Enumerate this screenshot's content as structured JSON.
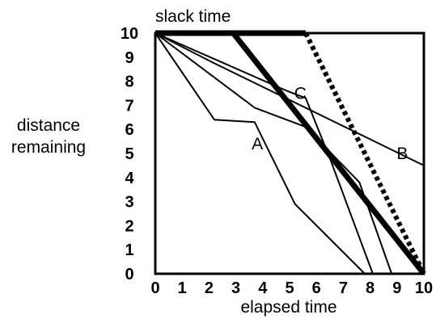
{
  "chart_data": {
    "type": "line",
    "title": "slack time",
    "xlabel": "elapsed time",
    "ylabel": "distance remaining",
    "xlim": [
      0,
      10
    ],
    "ylim": [
      0,
      10
    ],
    "xticks": [
      "0",
      "1",
      "2",
      "3",
      "4",
      "5",
      "6",
      "7",
      "8",
      "9",
      "10"
    ],
    "yticks": [
      "0",
      "1",
      "2",
      "3",
      "4",
      "5",
      "6",
      "7",
      "8",
      "9",
      "10"
    ],
    "grid": false,
    "series": [
      {
        "name": "A",
        "style": "thin",
        "points": [
          [
            0,
            10
          ],
          [
            2.2,
            6.4
          ],
          [
            3.7,
            6.3
          ],
          [
            5.2,
            2.9
          ],
          [
            7.8,
            0
          ]
        ]
      },
      {
        "name": "B",
        "style": "thin",
        "points": [
          [
            0,
            10
          ],
          [
            2.1,
            8.8
          ],
          [
            10,
            4.5
          ]
        ]
      },
      {
        "name": "C",
        "style": "thin",
        "points": [
          [
            0,
            10
          ],
          [
            3.7,
            6.9
          ],
          [
            5.6,
            6.1
          ],
          [
            7.6,
            3.8
          ],
          [
            8.8,
            0
          ]
        ]
      },
      {
        "name": "",
        "style": "thin",
        "points": [
          [
            0,
            10
          ],
          [
            4.9,
            7.6
          ],
          [
            5.6,
            7.3
          ],
          [
            6.5,
            4.8
          ],
          [
            8.1,
            0
          ]
        ]
      },
      {
        "name": "",
        "style": "thick",
        "points": [
          [
            0,
            10
          ],
          [
            2.9,
            10
          ],
          [
            10,
            0
          ]
        ]
      },
      {
        "name": "",
        "style": "thick",
        "points": [
          [
            0,
            10
          ],
          [
            5.6,
            10
          ]
        ]
      },
      {
        "name": "",
        "style": "dotted",
        "points": [
          [
            5.6,
            10
          ],
          [
            10,
            0
          ]
        ]
      }
    ],
    "series_labels": [
      {
        "text": "A",
        "x": 3.8,
        "y": 5.4
      },
      {
        "text": "B",
        "x": 9.2,
        "y": 5.0
      },
      {
        "text": "C",
        "x": 5.4,
        "y": 7.5
      }
    ]
  }
}
